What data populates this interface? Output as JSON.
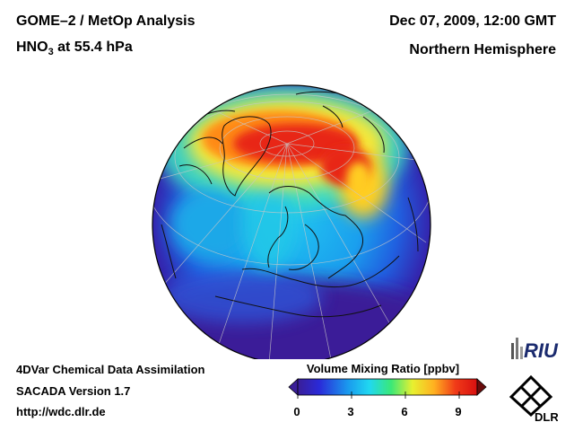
{
  "header": {
    "title_line1": "GOME–2 / MetOp Analysis",
    "species": "HNO",
    "species_sub": "3",
    "level_suffix": " at 55.4 hPa",
    "datetime": "Dec 07, 2009, 12:00 GMT",
    "region": "Northern Hemisphere"
  },
  "footer": {
    "method": "4DVar Chemical Data Assimilation",
    "version": "SACADA Version 1.7",
    "url": "http://wdc.dlr.de"
  },
  "colorbar": {
    "title": "Volume Mixing Ratio [ppbv]",
    "ticks": [
      "0",
      "3",
      "6",
      "9"
    ],
    "min": 0,
    "max": 10
  },
  "logos": {
    "riu": "RIU",
    "dlr": "DLR"
  },
  "colors": {
    "ocean_low": "#3a1f9a",
    "mid": "#22aaf0",
    "high": "#e81818"
  }
}
